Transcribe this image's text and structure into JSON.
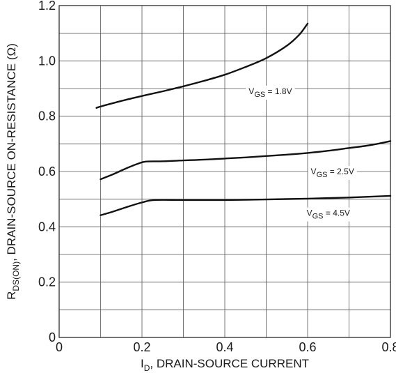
{
  "chart_data": {
    "type": "line",
    "xlabel": {
      "main": "I",
      "sub": "D",
      "rest": ", DRAIN-SOURCE CURRENT"
    },
    "ylabel": {
      "main": "R",
      "sub": "DS(ON)",
      "rest": ", DRAIN-SOURCE ON-RESISTANCE (Ω)"
    },
    "xlim": [
      0,
      0.8
    ],
    "ylim": [
      0,
      1.2
    ],
    "x_ticks": [
      "0",
      "0.2",
      "0.4",
      "0.6",
      "0.8"
    ],
    "y_ticks": [
      "0",
      "0.2",
      "0.4",
      "0.6",
      "0.8",
      "1.0",
      "1.2"
    ],
    "grid": true,
    "series": [
      {
        "label": {
          "main": "V",
          "sub": "GS",
          "rest": " = 1.8V"
        },
        "x": [
          0.09,
          0.1,
          0.15,
          0.2,
          0.25,
          0.3,
          0.35,
          0.4,
          0.45,
          0.5,
          0.55,
          0.58,
          0.6
        ],
        "y": [
          0.83,
          0.835,
          0.855,
          0.873,
          0.89,
          0.908,
          0.928,
          0.95,
          0.978,
          1.01,
          1.055,
          1.095,
          1.135
        ]
      },
      {
        "label": {
          "main": "V",
          "sub": "GS",
          "rest": " = 2.5V"
        },
        "x": [
          0.1,
          0.13,
          0.16,
          0.19,
          0.21,
          0.25,
          0.3,
          0.35,
          0.4,
          0.45,
          0.5,
          0.55,
          0.6,
          0.65,
          0.7,
          0.75,
          0.8
        ],
        "y": [
          0.572,
          0.59,
          0.61,
          0.628,
          0.636,
          0.637,
          0.64,
          0.643,
          0.647,
          0.651,
          0.656,
          0.661,
          0.667,
          0.675,
          0.685,
          0.695,
          0.71
        ]
      },
      {
        "label": {
          "main": "V",
          "sub": "GS",
          "rest": " = 4.5V"
        },
        "x": [
          0.1,
          0.13,
          0.16,
          0.2,
          0.23,
          0.3,
          0.4,
          0.5,
          0.6,
          0.7,
          0.8
        ],
        "y": [
          0.442,
          0.455,
          0.47,
          0.488,
          0.497,
          0.497,
          0.497,
          0.499,
          0.502,
          0.506,
          0.512
        ]
      }
    ]
  }
}
